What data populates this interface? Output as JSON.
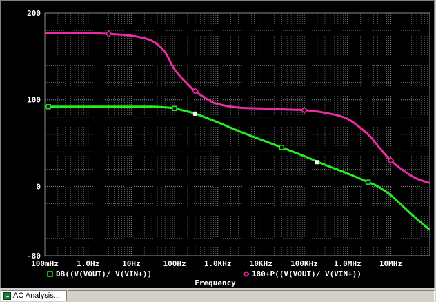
{
  "status_bar": {
    "tab_label": "AC Analysis...."
  },
  "colors": {
    "background": "#000000",
    "grid": "#8a8a8a",
    "axis_text": "#ffffff",
    "series_magnitude": "#22ee22",
    "series_phase": "#ee2aa6",
    "marker_highlight": "#ffffff"
  },
  "chart_data": {
    "type": "line",
    "title": "",
    "xlabel": "Frequency",
    "ylabel": "",
    "xscale": "log",
    "xlim": [
      0.1,
      80000000
    ],
    "ylim": [
      -80,
      200
    ],
    "grid": true,
    "legend_position": "bottom",
    "x_tick_values": [
      0.1,
      1,
      10,
      100,
      1000,
      10000,
      100000,
      1000000,
      10000000
    ],
    "x_tick_labels": [
      "100mHz",
      "1.0Hz",
      "10Hz",
      "100Hz",
      "1.0KHz",
      "10KHz",
      "100KHz",
      "1.0MHz",
      "10MHz"
    ],
    "y_tick_values": [
      -80,
      0,
      100,
      200
    ],
    "y_tick_labels": [
      "-80",
      "0",
      "100",
      "200"
    ],
    "series": [
      {
        "name": "DB((V(VOUT)/ V(VIN+))",
        "legend_symbol": "square",
        "x": [
          0.1,
          1,
          10,
          30,
          70,
          100,
          150,
          300,
          1000,
          3000,
          10000,
          30000,
          100000,
          300000,
          1000000,
          3000000,
          5000000,
          10000000,
          30000000,
          80000000
        ],
        "y": [
          92,
          92,
          92,
          92,
          91,
          90,
          88,
          84,
          74,
          64,
          54,
          45,
          35,
          25,
          15,
          5,
          0,
          -10,
          -32,
          -50
        ],
        "markers_x": [
          0.12,
          100,
          30000,
          3000000
        ],
        "marker_style": "hollow-square"
      },
      {
        "name": "180+P((V(VOUT)/ V(VIN+))",
        "legend_symbol": "diamond",
        "x": [
          0.1,
          1,
          3,
          10,
          30,
          60,
          100,
          200,
          300,
          600,
          1000,
          3000,
          10000,
          30000,
          100000,
          300000,
          1000000,
          3000000,
          5000000,
          10000000,
          20000000,
          40000000,
          80000000
        ],
        "y": [
          177,
          177,
          176,
          174,
          168,
          155,
          135,
          118,
          110,
          100,
          95,
          91,
          90,
          89,
          88,
          85,
          78,
          60,
          47,
          30,
          18,
          9,
          4
        ],
        "markers_x": [
          3,
          300,
          100000,
          10000000
        ],
        "marker_style": "hollow-diamond"
      }
    ],
    "cursor_marks": [
      {
        "x": 300,
        "y": 84
      },
      {
        "x": 200000,
        "y": 28
      }
    ]
  }
}
